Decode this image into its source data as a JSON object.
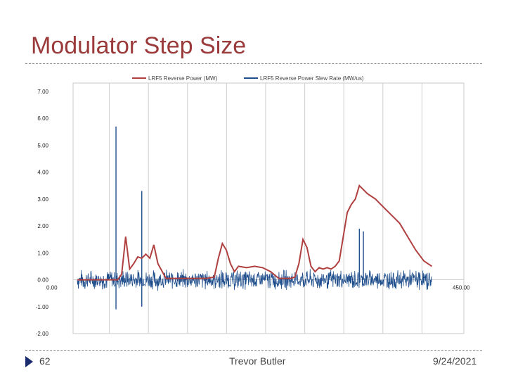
{
  "slide": {
    "title": "Modulator Step Size",
    "number": "62",
    "author": "Trevor Butler",
    "date": "9/24/2021"
  },
  "colors": {
    "title": "#9b3a3a",
    "reverse_power": "#b04040",
    "slew_rate": "#1f4e8c",
    "grid": "#c8c8c8",
    "bullet": "#1a2b6e"
  },
  "chart_data": {
    "type": "line",
    "legend_position": "top",
    "grid": true,
    "ylim": [
      -2,
      7
    ],
    "xlim": [
      0,
      450
    ],
    "y_ticks": [
      "-2.00",
      "-1.00",
      "0.00",
      "1.00",
      "2.00",
      "3.00",
      "4.00",
      "5.00",
      "6.00",
      "7.00"
    ],
    "x_tick_labels_visible": [
      "0.00",
      "450.00"
    ],
    "series": [
      {
        "name": "LRF5 Reverse Power (MW)",
        "x": [
          0,
          30,
          40,
          45,
          50,
          55,
          60,
          65,
          70,
          75,
          80,
          85,
          90,
          95,
          100,
          110,
          120,
          130,
          140,
          150,
          160,
          170,
          175,
          180,
          185,
          190,
          195,
          200,
          210,
          220,
          230,
          240,
          250,
          255,
          260,
          265,
          270,
          275,
          280,
          285,
          290,
          295,
          300,
          305,
          310,
          315,
          320,
          325,
          330,
          335,
          340,
          345,
          350,
          360,
          370,
          380,
          390,
          400,
          410,
          420,
          430,
          440
        ],
        "values": [
          0,
          0,
          0,
          0,
          0,
          0.2,
          1.6,
          0.4,
          0.6,
          0.85,
          0.8,
          0.95,
          0.8,
          1.3,
          0.6,
          0.05,
          0.05,
          0.05,
          0.05,
          0.05,
          0.05,
          0.1,
          0.8,
          1.35,
          1.1,
          0.6,
          0.3,
          0.5,
          0.45,
          0.5,
          0.45,
          0.3,
          0.05,
          0.05,
          0.05,
          0.05,
          0.1,
          0.6,
          1.5,
          1.2,
          0.5,
          0.3,
          0.45,
          0.4,
          0.45,
          0.4,
          0.5,
          0.7,
          1.6,
          2.5,
          2.8,
          3.0,
          3.5,
          3.2,
          3.0,
          2.7,
          2.4,
          2.1,
          1.6,
          1.1,
          0.7,
          0.5
        ]
      },
      {
        "name": "LRF5 Reverse Power Slew Rate (MW/us)",
        "noise_amplitude": 0.3,
        "x_range": [
          0,
          440
        ],
        "spikes": [
          {
            "x": 48,
            "y": 5.7
          },
          {
            "x": 48,
            "y": -1.1
          },
          {
            "x": 80,
            "y": 3.3
          },
          {
            "x": 80,
            "y": -1.0
          },
          {
            "x": 350,
            "y": 1.9
          },
          {
            "x": 355,
            "y": 1.8
          }
        ]
      }
    ]
  }
}
